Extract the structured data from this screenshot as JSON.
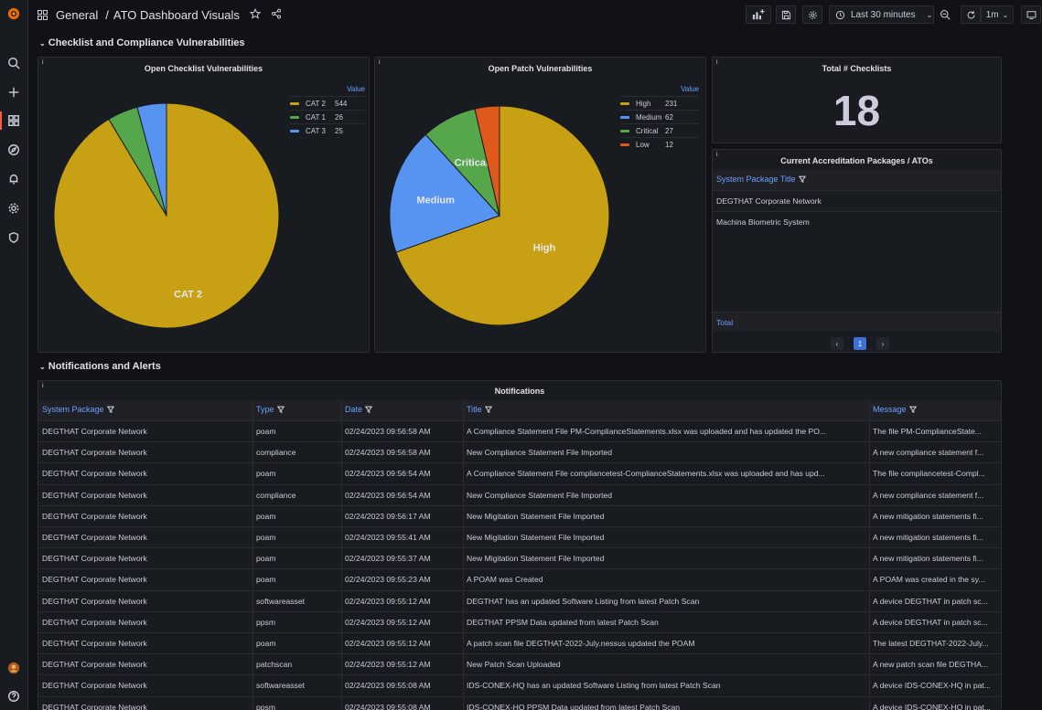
{
  "breadcrumb": {
    "folder": "General",
    "separator": "/",
    "dashboard": "ATO Dashboard Visuals"
  },
  "toolbar": {
    "time_range": "Last 30 minutes",
    "refresh_interval": "1m"
  },
  "rows": [
    {
      "title": "Checklist and Compliance Vulnerabilities"
    },
    {
      "title": "Notifications and Alerts"
    }
  ],
  "panels": {
    "checklist_pie": {
      "title": "Open Checklist Vulnerabilities",
      "legend_header": "Value"
    },
    "patch_pie": {
      "title": "Open Patch Vulnerabilities",
      "legend_header": "Value"
    },
    "total_checklists": {
      "title": "Total # Checklists",
      "value": "18"
    },
    "accreditation": {
      "title": "Current Accreditation Packages / ATOs",
      "column": "System Package Title",
      "rows": [
        "DEGTHAT Corporate Network",
        "Machina Biometric System"
      ],
      "footer": "Total",
      "page": "1",
      "prev": "‹",
      "next": "›"
    },
    "notifications": {
      "title": "Notifications",
      "columns": [
        "System Package",
        "Type",
        "Date",
        "Title",
        "Message"
      ],
      "rows": [
        [
          "DEGTHAT Corporate Network",
          "poam",
          "02/24/2023 09:56:58 AM",
          "A Compliance Statement File PM-ComplianceStatements.xlsx was uploaded and has updated the PO...",
          "The file PM-ComplianceState..."
        ],
        [
          "DEGTHAT Corporate Network",
          "compliance",
          "02/24/2023 09:56:58 AM",
          "New Compliance Statement File Imported",
          "A new compliance statement f..."
        ],
        [
          "DEGTHAT Corporate Network",
          "poam",
          "02/24/2023 09:56:54 AM",
          "A Compliance Statement File compliancetest-ComplianceStatements.xlsx was uploaded and has upd...",
          "The file compliancetest-Compl..."
        ],
        [
          "DEGTHAT Corporate Network",
          "compliance",
          "02/24/2023 09:56:54 AM",
          "New Compliance Statement File Imported",
          "A new compliance statement f..."
        ],
        [
          "DEGTHAT Corporate Network",
          "poam",
          "02/24/2023 09:56:17 AM",
          "New Migitation Statement File Imported",
          "A new mitigation statements fi..."
        ],
        [
          "DEGTHAT Corporate Network",
          "poam",
          "02/24/2023 09:55:41 AM",
          "New Migitation Statement File Imported",
          "A new mitigation statements fi..."
        ],
        [
          "DEGTHAT Corporate Network",
          "poam",
          "02/24/2023 09:55:37 AM",
          "New Migitation Statement File Imported",
          "A new mitigation statements fi..."
        ],
        [
          "DEGTHAT Corporate Network",
          "poam",
          "02/24/2023 09:55:23 AM",
          "A POAM was Created",
          "A POAM was created in the sy..."
        ],
        [
          "DEGTHAT Corporate Network",
          "softwareasset",
          "02/24/2023 09:55:12 AM",
          "DEGTHAT has an updated Software Listing from latest Patch Scan",
          "A device DEGTHAT in patch sc..."
        ],
        [
          "DEGTHAT Corporate Network",
          "ppsm",
          "02/24/2023 09:55:12 AM",
          "DEGTHAT PPSM Data updated from latest Patch Scan",
          "A device DEGTHAT in patch sc..."
        ],
        [
          "DEGTHAT Corporate Network",
          "poam",
          "02/24/2023 09:55:12 AM",
          "A patch scan file DEGTHAT-2022-July.nessus updated the POAM",
          "The latest DEGTHAT-2022-July..."
        ],
        [
          "DEGTHAT Corporate Network",
          "patchscan",
          "02/24/2023 09:55:12 AM",
          "New Patch Scan Uploaded",
          "A new patch scan file DEGTHA..."
        ],
        [
          "DEGTHAT Corporate Network",
          "softwareasset",
          "02/24/2023 09:55:08 AM",
          "IDS-CONEX-HQ has an updated Software Listing from latest Patch Scan",
          "A device IDS-CONEX-HQ in pat..."
        ],
        [
          "DEGTHAT Corporate Network",
          "ppsm",
          "02/24/2023 09:55:08 AM",
          "IDS-CONEX-HQ PPSM Data updated from latest Patch Scan",
          "A device IDS-CONEX-HQ in pat..."
        ]
      ]
    }
  },
  "chart_data": [
    {
      "type": "pie",
      "title": "Open Checklist Vulnerabilities",
      "categories": [
        "CAT 2",
        "CAT 1",
        "CAT 3"
      ],
      "values": [
        544,
        26,
        25
      ],
      "colors": [
        "#c8a013",
        "#56a64b",
        "#5794f2"
      ],
      "slice_labels": [
        "CAT 2",
        "",
        ""
      ],
      "legend_placement": "top-right"
    },
    {
      "type": "pie",
      "title": "Open Patch Vulnerabilities",
      "categories": [
        "High",
        "Medium",
        "Critical",
        "Low"
      ],
      "values": [
        231,
        62,
        27,
        12
      ],
      "colors": [
        "#c8a013",
        "#5794f2",
        "#56a64b",
        "#e0581a"
      ],
      "slice_labels": [
        "High",
        "Medium",
        "Critical",
        ""
      ],
      "legend_placement": "top-right"
    }
  ]
}
